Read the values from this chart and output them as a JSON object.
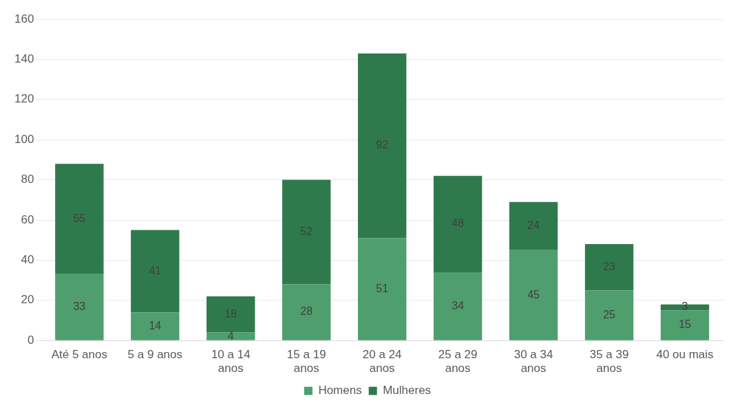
{
  "chart_data": {
    "type": "bar",
    "stacked": true,
    "categories": [
      "Até 5 anos",
      "5 a 9 anos",
      "10 a 14 anos",
      "15 a 19 anos",
      "20 a 24 anos",
      "25 a 29 anos",
      "30 a 34 anos",
      "35 a 39 anos",
      "40 ou mais"
    ],
    "series": [
      {
        "name": "Homens",
        "color": "#4f9e6e",
        "values": [
          33,
          14,
          4,
          28,
          51,
          34,
          45,
          25,
          15
        ]
      },
      {
        "name": "Mulheres",
        "color": "#2f7a4c",
        "values": [
          55,
          41,
          18,
          52,
          92,
          48,
          24,
          23,
          3
        ]
      }
    ],
    "ylim": [
      0,
      160
    ],
    "yticks": [
      0,
      20,
      40,
      60,
      80,
      100,
      120,
      140,
      160
    ],
    "grid": "y",
    "legend": "bottom",
    "data_labels": true
  }
}
